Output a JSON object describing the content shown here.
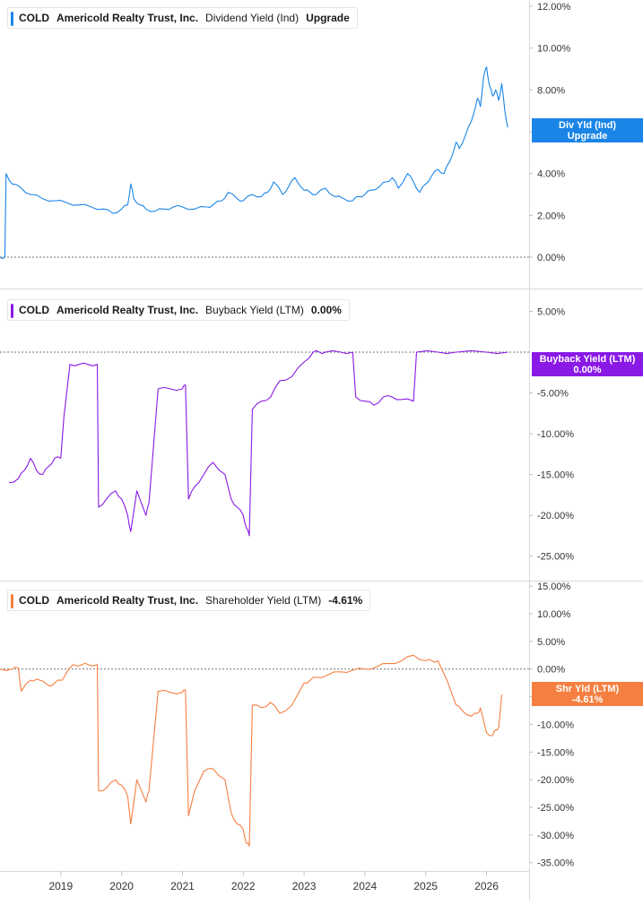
{
  "chart_data": [
    {
      "type": "line",
      "ticker": "COLD",
      "company": "Americold Realty Trust, Inc.",
      "metric": "Dividend Yield (Ind)",
      "value_label": "Upgrade",
      "tag_label": "Div Yld (Ind)",
      "tag_value": "Upgrade",
      "color": "#1a85e6",
      "ylim": [
        -1.5,
        12.3
      ],
      "yticks": [
        0,
        2,
        4,
        6,
        8,
        10,
        12
      ],
      "ytick_labels": [
        "0.00%",
        "2.00%",
        "4.00%",
        "6.00%",
        "8.00%",
        "10.00%",
        "12.00%"
      ],
      "series": [
        {
          "x": [
            2018.0,
            2018.08,
            2018.1,
            2018.2,
            2018.35,
            2018.5,
            2018.7,
            2018.9,
            2019.1,
            2019.3,
            2019.5,
            2019.7,
            2019.85,
            2020.0,
            2020.1,
            2020.15,
            2020.2,
            2020.3,
            2020.4,
            2020.55,
            2020.7,
            2020.85,
            2021.0,
            2021.2,
            2021.4,
            2021.5,
            2021.65,
            2021.75,
            2021.9,
            2022.0,
            2022.15,
            2022.3,
            2022.4,
            2022.5,
            2022.65,
            2022.75,
            2022.85,
            2023.0,
            2023.1,
            2023.2,
            2023.35,
            2023.5,
            2023.65,
            2023.8,
            2023.9,
            2024.0,
            2024.1,
            2024.25,
            2024.35,
            2024.45,
            2024.55,
            2024.7,
            2024.8,
            2024.9,
            2025.0,
            2025.1,
            2025.2,
            2025.3,
            2025.4,
            2025.5,
            2025.55,
            2025.65,
            2025.75,
            2025.85,
            2025.9,
            2025.95,
            2026.0,
            2026.05,
            2026.1,
            2026.15,
            2026.2,
            2026.25,
            2026.3,
            2026.35
          ],
          "y": [
            0.0,
            0.0,
            4.0,
            3.5,
            3.3,
            3.0,
            2.8,
            2.7,
            2.6,
            2.5,
            2.4,
            2.3,
            2.1,
            2.3,
            2.5,
            3.5,
            2.8,
            2.5,
            2.3,
            2.2,
            2.3,
            2.4,
            2.4,
            2.3,
            2.4,
            2.5,
            2.7,
            3.1,
            2.8,
            2.7,
            3.0,
            2.9,
            3.1,
            3.6,
            3.0,
            3.4,
            3.8,
            3.2,
            3.1,
            3.0,
            3.3,
            2.9,
            2.8,
            2.7,
            2.9,
            3.0,
            3.2,
            3.4,
            3.6,
            3.8,
            3.3,
            4.0,
            3.6,
            3.1,
            3.5,
            3.9,
            4.2,
            4.0,
            4.6,
            5.5,
            5.2,
            5.8,
            6.5,
            7.6,
            7.2,
            8.6,
            9.1,
            8.2,
            7.7,
            8.0,
            7.5,
            8.3,
            7.0,
            6.2
          ]
        }
      ]
    },
    {
      "type": "line",
      "ticker": "COLD",
      "company": "Americold Realty Trust, Inc.",
      "metric": "Buyback Yield (LTM)",
      "value_label": "0.00%",
      "tag_label": "Buyback Yield (LTM)",
      "tag_value": "0.00%",
      "color": "#8a19e6",
      "ylim": [
        -28.0,
        7.8
      ],
      "yticks": [
        5,
        -5,
        -10,
        -15,
        -20,
        -25
      ],
      "ytick_labels": [
        "5.00%",
        "-5.00%",
        "-10.00%",
        "-15.00%",
        "-20.00%",
        "-25.00%"
      ],
      "series": [
        {
          "x": [
            2018.15,
            2018.3,
            2018.4,
            2018.5,
            2018.6,
            2018.7,
            2018.8,
            2018.9,
            2019.0,
            2019.05,
            2019.15,
            2019.3,
            2019.45,
            2019.6,
            2019.62,
            2019.75,
            2019.9,
            2020.0,
            2020.1,
            2020.15,
            2020.25,
            2020.4,
            2020.45,
            2020.6,
            2020.8,
            2021.0,
            2021.05,
            2021.1,
            2021.2,
            2021.35,
            2021.5,
            2021.7,
            2021.8,
            2021.9,
            2022.0,
            2022.05,
            2022.1,
            2022.15,
            2022.3,
            2022.45,
            2022.6,
            2022.8,
            2023.0,
            2023.15,
            2023.25,
            2023.35,
            2023.6,
            2023.8,
            2023.85,
            2024.0,
            2024.15,
            2024.3,
            2024.45,
            2024.6,
            2024.8,
            2024.85,
            2025.2,
            2025.5,
            2026.0,
            2026.35
          ],
          "y": [
            -16.0,
            -15.5,
            -14.5,
            -13.0,
            -14.5,
            -15.0,
            -14.0,
            -13.0,
            -13.0,
            -8.0,
            -1.5,
            -1.5,
            -1.5,
            -1.5,
            -19.0,
            -18.0,
            -17.0,
            -18.0,
            -20.0,
            -22.0,
            -17.0,
            -20.0,
            -18.5,
            -4.5,
            -4.5,
            -4.5,
            -4.0,
            -18.0,
            -16.5,
            -15.0,
            -13.5,
            -15.0,
            -18.0,
            -19.0,
            -20.0,
            -21.5,
            -22.5,
            -7.0,
            -6.0,
            -5.5,
            -3.5,
            -3.0,
            -1.2,
            0.0,
            0.0,
            0.0,
            0.0,
            0.0,
            -5.5,
            -6.0,
            -6.5,
            -5.5,
            -5.5,
            -5.8,
            -6.0,
            0.0,
            0.0,
            0.0,
            0.0,
            0.0
          ]
        }
      ]
    },
    {
      "type": "line",
      "ticker": "COLD",
      "company": "Americold Realty Trust, Inc.",
      "metric": "Shareholder Yield (LTM)",
      "value_label": "-4.61%",
      "tag_label": "Shr Yld (LTM)",
      "tag_value": "-4.61%",
      "color": "#f57f40",
      "ylim": [
        -36.5,
        16.0
      ],
      "yticks": [
        15,
        10,
        5,
        0,
        -5,
        -10,
        -15,
        -20,
        -25,
        -30,
        -35
      ],
      "ytick_labels": [
        "15.00%",
        "10.00%",
        "5.00%",
        "0.00%",
        "-5.00%",
        "-10.00%",
        "-15.00%",
        "-20.00%",
        "-25.00%",
        "-30.00%",
        "-35.00%"
      ],
      "x_tick_values": [
        2019,
        2020,
        2021,
        2022,
        2023,
        2024,
        2025,
        2026
      ],
      "x_tick_labels": [
        "2019",
        "2020",
        "2021",
        "2022",
        "2023",
        "2024",
        "2025",
        "2026"
      ],
      "series": [
        {
          "x": [
            2018.0,
            2018.2,
            2018.3,
            2018.35,
            2018.5,
            2018.6,
            2018.8,
            2018.9,
            2019.0,
            2019.05,
            2019.2,
            2019.35,
            2019.45,
            2019.6,
            2019.62,
            2019.75,
            2019.9,
            2020.0,
            2020.1,
            2020.15,
            2020.25,
            2020.4,
            2020.45,
            2020.6,
            2020.8,
            2021.0,
            2021.05,
            2021.1,
            2021.2,
            2021.35,
            2021.5,
            2021.7,
            2021.8,
            2021.9,
            2022.0,
            2022.05,
            2022.1,
            2022.15,
            2022.3,
            2022.45,
            2022.6,
            2022.8,
            2023.0,
            2023.1,
            2023.2,
            2023.4,
            2023.6,
            2023.8,
            2024.0,
            2024.2,
            2024.4,
            2024.6,
            2024.8,
            2025.0,
            2025.1,
            2025.2,
            2025.35,
            2025.5,
            2025.6,
            2025.75,
            2025.85,
            2025.9,
            2026.0,
            2026.1,
            2026.15,
            2026.2,
            2026.25
          ],
          "y": [
            0.0,
            0.0,
            0.2,
            -4.0,
            -2.0,
            -1.8,
            -3.0,
            -2.5,
            -2.0,
            -1.5,
            0.8,
            0.8,
            0.8,
            0.8,
            -22.0,
            -21.5,
            -20.0,
            -21.0,
            -23.0,
            -28.0,
            -20.0,
            -24.0,
            -22.0,
            -4.0,
            -4.2,
            -4.2,
            -3.8,
            -26.5,
            -22.0,
            -18.5,
            -18.0,
            -20.0,
            -26.0,
            -28.0,
            -29.0,
            -31.5,
            -32.0,
            -6.5,
            -7.0,
            -6.0,
            -8.0,
            -6.5,
            -2.5,
            -2.0,
            -1.5,
            -1.0,
            -0.5,
            -0.2,
            0.0,
            0.5,
            1.0,
            1.5,
            2.5,
            1.5,
            1.5,
            1.5,
            -2.0,
            -6.5,
            -7.5,
            -8.5,
            -8.0,
            -7.0,
            -11.5,
            -12.0,
            -11.0,
            -10.5,
            -4.61
          ]
        }
      ]
    }
  ]
}
